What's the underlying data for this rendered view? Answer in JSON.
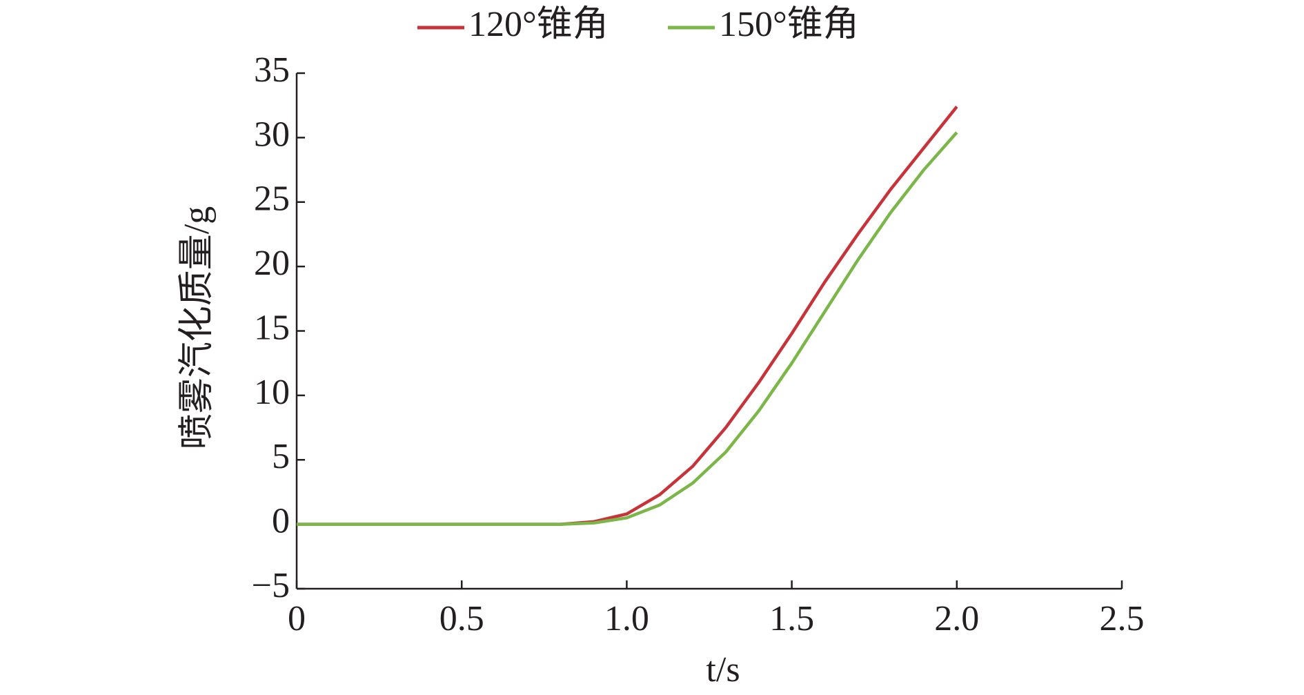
{
  "chart_data": {
    "type": "line",
    "xlabel": "t/s",
    "ylabel": "喷雾汽化质量/g",
    "x": [
      0,
      0.1,
      0.2,
      0.3,
      0.4,
      0.5,
      0.6,
      0.7,
      0.8,
      0.9,
      1.0,
      1.1,
      1.2,
      1.3,
      1.4,
      1.5,
      1.6,
      1.7,
      1.8,
      1.9,
      2.0
    ],
    "series": [
      {
        "name": "120°锥角",
        "color": "#c8333a",
        "values": [
          0,
          0,
          0,
          0,
          0,
          0,
          0,
          0,
          0,
          0.2,
          0.8,
          2.3,
          4.5,
          7.5,
          11,
          14.8,
          18.8,
          22.5,
          26,
          29.2,
          32.4
        ]
      },
      {
        "name": "150°锥角",
        "color": "#7ab648",
        "values": [
          0,
          0,
          0,
          0,
          0,
          0,
          0,
          0,
          0,
          0.1,
          0.5,
          1.5,
          3.2,
          5.6,
          8.8,
          12.5,
          16.5,
          20.5,
          24.2,
          27.5,
          30.4
        ]
      }
    ],
    "xlim": [
      0,
      2.5
    ],
    "xticks": [
      0,
      0.5,
      {
        "value": 1.0,
        "label": "1.0"
      },
      1.5,
      {
        "value": 2.0,
        "label": "2.0"
      },
      2.5
    ],
    "ylim": [
      -5,
      35
    ],
    "yticks": [
      {
        "value": -5,
        "label": "−5"
      },
      0,
      5,
      10,
      15,
      20,
      25,
      30,
      35
    ],
    "grid": false,
    "legend": "top"
  }
}
